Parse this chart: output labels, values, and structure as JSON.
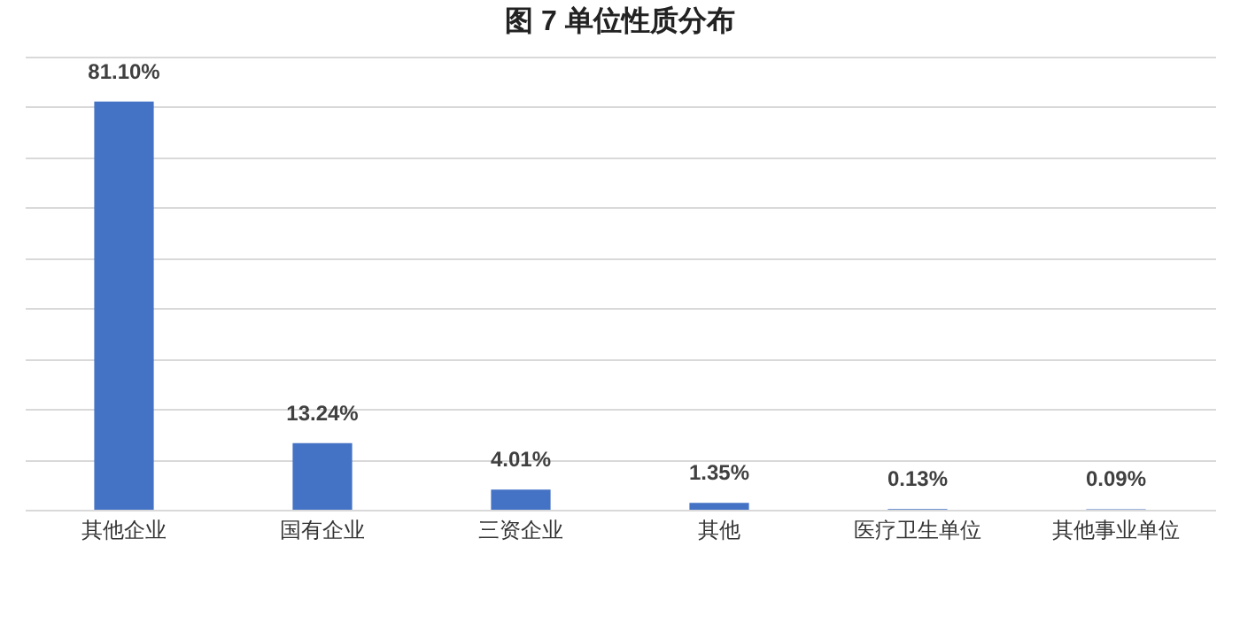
{
  "chart_data": {
    "type": "bar",
    "title": "图 7  单位性质分布",
    "categories": [
      "其他企业",
      "国有企业",
      "三资企业",
      "其他",
      "医疗卫生单位",
      "其他事业单位"
    ],
    "values": [
      81.1,
      13.24,
      4.01,
      1.35,
      0.13,
      0.09
    ],
    "value_labels": [
      "81.10%",
      "13.24%",
      "4.01%",
      "1.35%",
      "0.13%",
      "0.09%"
    ],
    "color": "#4472c4",
    "grid": "y",
    "tick_labels": "x"
  }
}
